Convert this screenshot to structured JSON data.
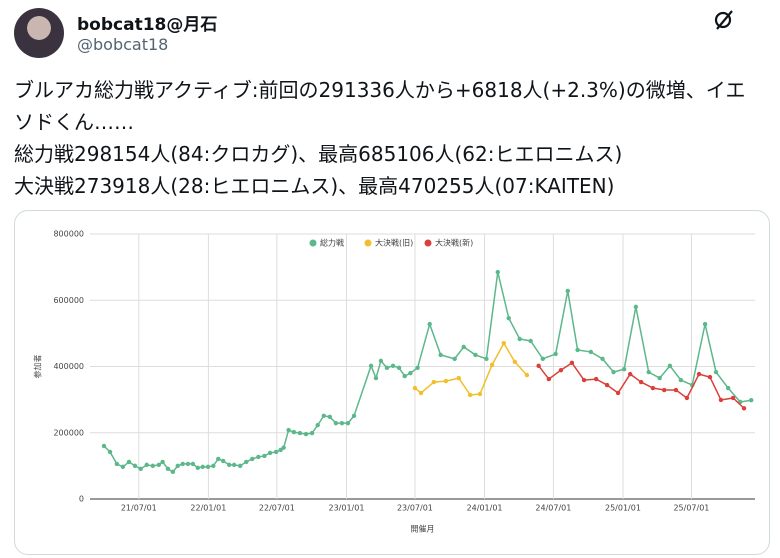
{
  "tweet": {
    "name": "bobcat18@月石",
    "handle": "@bobcat18",
    "lines": [
      "ブルアカ総力戦アクティブ:前回の291336人から+6818人(+2.3%)の微増、イエソドくん……",
      "総力戦298154人(84:クロカグ)、最高685106人(62:ヒエロニムス)",
      "大決戦273918人(28:ヒエロニムス)、最高470255人(07:KAITEN)"
    ]
  },
  "chart_data": {
    "type": "line",
    "x_label": "開催月",
    "y_label": "参加者",
    "xlim": [
      "21/02/22",
      "25/12/16"
    ],
    "xticks": [
      "21/07/01",
      "22/01/01",
      "22/07/01",
      "23/01/01",
      "23/07/01",
      "24/01/01",
      "24/07/01",
      "25/01/01",
      "25/07/01"
    ],
    "ylim": [
      0,
      800000
    ],
    "yticks": [
      0,
      200000,
      400000,
      600000,
      800000
    ],
    "grid": true,
    "legend": "top",
    "series": [
      {
        "name": "総力戦",
        "color": "#5cb88a",
        "x": [
          "21/03/31",
          "21/04/16",
          "21/05/04",
          "21/05/20",
          "21/06/05",
          "21/06/21",
          "21/07/06",
          "21/07/22",
          "21/08/07",
          "21/08/23",
          "21/09/02",
          "21/09/16",
          "21/09/29",
          "21/10/12",
          "21/10/25",
          "21/11/08",
          "21/11/21",
          "21/12/04",
          "21/12/17",
          "21/12/31",
          "22/01/14",
          "22/01/27",
          "22/02/09",
          "22/02/25",
          "22/03/10",
          "22/03/26",
          "22/04/11",
          "22/04/27",
          "22/05/13",
          "22/05/29",
          "22/06/13",
          "22/06/29",
          "22/07/11",
          "22/07/19",
          "22/08/01",
          "22/08/15",
          "22/08/31",
          "22/09/16",
          "22/10/02",
          "22/10/17",
          "22/11/02",
          "22/11/18",
          "22/12/04",
          "22/12/20",
          "23/01/05",
          "23/01/21",
          "23/03/07",
          "23/03/20",
          "23/04/02",
          "23/04/18",
          "23/05/04",
          "23/05/20",
          "23/06/04",
          "23/06/19",
          "23/07/08",
          "23/08/09",
          "23/09/07",
          "23/10/14",
          "23/11/07",
          "23/12/08",
          "24/01/06",
          "24/02/05",
          "24/03/05",
          "24/04/03",
          "24/05/02",
          "24/06/03",
          "24/07/07",
          "24/08/08",
          "24/09/03",
          "24/10/08",
          "24/11/08",
          "24/12/07",
          "25/01/04",
          "25/02/04",
          "25/03/10",
          "25/04/08",
          "25/05/05",
          "25/06/03",
          "25/07/03",
          "25/08/06",
          "25/09/04",
          "25/10/06",
          "25/11/07",
          "25/12/06"
        ],
        "values": [
          160000,
          142000,
          106000,
          97000,
          112000,
          100000,
          91000,
          103000,
          100000,
          103000,
          112000,
          91000,
          82000,
          100000,
          106000,
          106000,
          106000,
          94000,
          97000,
          97000,
          100000,
          121000,
          115000,
          103000,
          103000,
          100000,
          112000,
          121000,
          127000,
          130000,
          139000,
          142000,
          148000,
          155000,
          208000,
          202000,
          199000,
          196000,
          199000,
          223000,
          251000,
          248000,
          229000,
          229000,
          229000,
          251000,
          402000,
          365000,
          417000,
          396000,
          402000,
          396000,
          371000,
          380000,
          396000,
          528000,
          435000,
          423000,
          459000,
          435000,
          423000,
          685106,
          546000,
          483000,
          477000,
          423000,
          438000,
          628000,
          450000,
          444000,
          423000,
          383000,
          392000,
          580000,
          383000,
          365000,
          402000,
          359000,
          344000,
          528000,
          383000,
          335000,
          293000,
          298154
        ]
      },
      {
        "name": "大決戦(旧)",
        "color": "#f1bf2b",
        "x": [
          "23/07/01",
          "23/07/17",
          "23/08/20",
          "23/09/21",
          "23/10/25",
          "23/11/24",
          "23/12/20",
          "24/01/21",
          "24/02/21",
          "24/03/21",
          "24/04/22"
        ],
        "values": [
          335000,
          320000,
          353000,
          356000,
          365000,
          314000,
          317000,
          405000,
          470255,
          414000,
          374000
        ]
      },
      {
        "name": "大決戦(新)",
        "color": "#d9403a",
        "x": [
          "24/05/23",
          "24/06/19",
          "24/07/21",
          "24/08/19",
          "24/09/20",
          "24/10/22",
          "24/11/20",
          "24/12/19",
          "25/01/20",
          "25/02/18",
          "25/03/21",
          "25/04/20",
          "25/05/21",
          "25/06/19",
          "25/07/21",
          "25/08/19",
          "25/09/17",
          "25/10/19",
          "25/11/17"
        ],
        "values": [
          402000,
          362000,
          389000,
          411000,
          359000,
          362000,
          344000,
          320000,
          377000,
          353000,
          335000,
          329000,
          329000,
          305000,
          377000,
          368000,
          299000,
          305000,
          273918
        ]
      }
    ]
  }
}
